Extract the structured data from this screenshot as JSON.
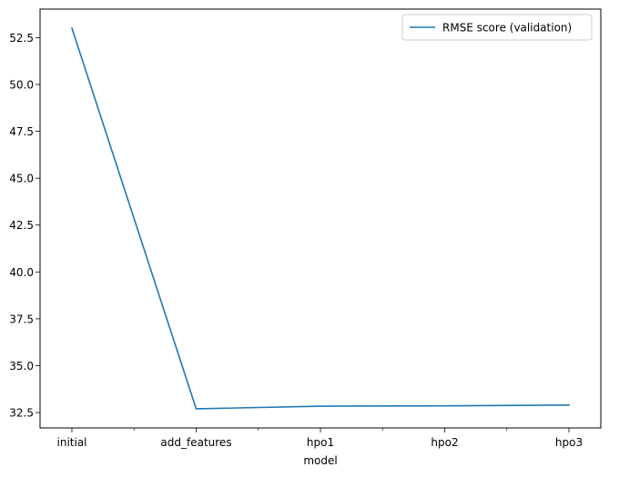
{
  "chart_data": {
    "type": "line",
    "title": "",
    "xlabel": "model",
    "ylabel": "",
    "categories": [
      "initial",
      "add_features",
      "hpo1",
      "hpo2",
      "hpo3"
    ],
    "series": [
      {
        "name": "RMSE score (validation)",
        "color": "#1f77b4",
        "values": [
          53.0,
          32.7,
          32.84,
          32.86,
          32.9
        ]
      }
    ],
    "ylim": [
      31.68,
      54.02
    ],
    "yticks": [
      32.5,
      35.0,
      37.5,
      40.0,
      42.5,
      45.0,
      47.5,
      50.0,
      52.5
    ],
    "ytick_labels": [
      "32.5",
      "35.0",
      "37.5",
      "40.0",
      "42.5",
      "45.0",
      "47.5",
      "50.0",
      "52.5"
    ],
    "grid": false,
    "legend": "top-right"
  }
}
